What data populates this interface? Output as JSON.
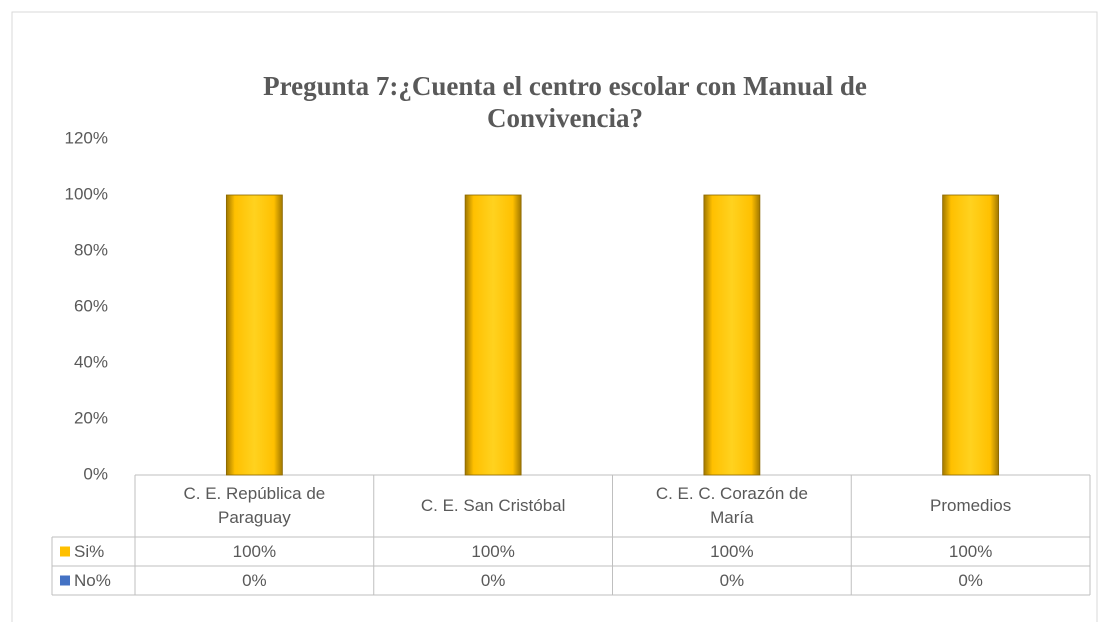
{
  "chart_data": {
    "type": "bar",
    "title": "Pregunta 7:¿Cuenta el centro escolar con Manual de Convivencia?",
    "categories": [
      "C. E. República de Paraguay",
      "C. E. San Cristóbal",
      "C. E. C. Corazón de María",
      "Promedios"
    ],
    "series": [
      {
        "name": "Si%",
        "color": "#ffc000",
        "values": [
          100,
          100,
          100,
          100
        ],
        "value_labels": [
          "100%",
          "100%",
          "100%",
          "100%"
        ]
      },
      {
        "name": "No%",
        "color": "#4472c4",
        "values": [
          0,
          0,
          0,
          0
        ],
        "value_labels": [
          "0%",
          "0%",
          "0%",
          "0%"
        ]
      }
    ],
    "ylim": [
      0,
      120
    ],
    "yticks": [
      {
        "value": 0,
        "label": "0%"
      },
      {
        "value": 20,
        "label": "20%"
      },
      {
        "value": 40,
        "label": "40%"
      },
      {
        "value": 60,
        "label": "60%"
      },
      {
        "value": 80,
        "label": "80%"
      },
      {
        "value": 100,
        "label": "100%"
      },
      {
        "value": 120,
        "label": "120%"
      }
    ],
    "grid": false,
    "data_table": true
  }
}
